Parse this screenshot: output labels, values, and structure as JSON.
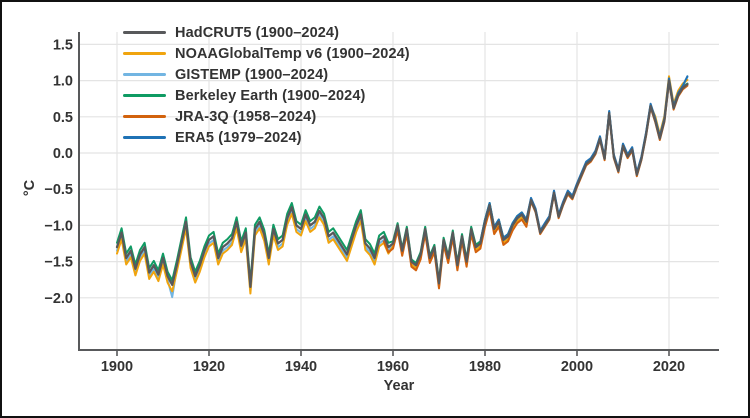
{
  "figure": {
    "background_color": "#ffffff",
    "border_color": "#111111"
  },
  "axes": {
    "xlabel": "Year",
    "ylabel": "°C",
    "axis_color": "#58595b",
    "grid_color": "#e4e4e4",
    "tick_label_color": "#333333",
    "x_ticks": [
      1900,
      1920,
      1940,
      1960,
      1980,
      2000,
      2020
    ],
    "y_ticks": [
      1.5,
      1.0,
      0.5,
      0.0,
      -0.5,
      -1.0,
      -1.5,
      -2.0
    ],
    "y_tick_labels": [
      "1.5",
      "1.0",
      "0.5",
      "0.0",
      "−0.5",
      "−1.0",
      "−1.5",
      "−2.0"
    ],
    "xlim": [
      1892,
      2031
    ],
    "ylim": [
      -2.72,
      1.67
    ]
  },
  "chart_data": {
    "type": "line",
    "title": "",
    "xlabel": "Year",
    "ylabel": "°C",
    "grid": true,
    "legend_position": "top-left-inside",
    "x_start_year": 1900,
    "x_end_year": 2024,
    "description": "Annual surface air temperature anomalies (°C) from six datasets, nearly overlapping lines rising from about -1.4 °C in 1900 to about +1.0 °C in 2024.",
    "base_series_name": "HadCRUT5",
    "base_values_1900_2024": [
      -1.3,
      -1.1,
      -1.45,
      -1.35,
      -1.6,
      -1.4,
      -1.3,
      -1.65,
      -1.55,
      -1.68,
      -1.45,
      -1.7,
      -1.82,
      -1.55,
      -1.25,
      -0.95,
      -1.5,
      -1.7,
      -1.55,
      -1.35,
      -1.2,
      -1.15,
      -1.45,
      -1.3,
      -1.25,
      -1.18,
      -0.95,
      -1.28,
      -1.1,
      -1.85,
      -1.05,
      -0.95,
      -1.12,
      -1.45,
      -1.05,
      -1.25,
      -1.2,
      -0.9,
      -0.75,
      -1.0,
      -1.05,
      -0.85,
      -1.0,
      -0.95,
      -0.8,
      -0.9,
      -1.15,
      -1.1,
      -1.2,
      -1.3,
      -1.4,
      -1.2,
      -1.0,
      -0.85,
      -1.25,
      -1.32,
      -1.45,
      -1.2,
      -1.15,
      -1.3,
      -1.25,
      -1.0,
      -1.35,
      -1.05,
      -1.5,
      -1.55,
      -1.4,
      -1.05,
      -1.45,
      -1.3,
      -1.8,
      -1.2,
      -1.45,
      -1.1,
      -1.55,
      -1.15,
      -1.5,
      -1.05,
      -1.3,
      -1.25,
      -0.95,
      -0.72,
      -1.05,
      -0.95,
      -1.2,
      -1.15,
      -1.0,
      -0.9,
      -0.85,
      -0.95,
      -0.65,
      -0.8,
      -1.1,
      -1.0,
      -0.9,
      -0.55,
      -0.88,
      -0.7,
      -0.55,
      -0.62,
      -0.45,
      -0.3,
      -0.15,
      -0.1,
      0.0,
      0.2,
      -0.08,
      0.55,
      -0.05,
      -0.25,
      0.1,
      -0.05,
      0.05,
      -0.3,
      -0.08,
      0.25,
      0.65,
      0.45,
      0.2,
      0.45,
      1.0,
      0.62,
      0.8,
      0.9,
      0.95
    ],
    "series": [
      {
        "name": "HadCRUT5 (1900–2024)",
        "short_name": "HadCRUT5",
        "color": "#58595b",
        "start_year": 1900,
        "end_year": 2024,
        "line_width": 2.3,
        "offsets_from_base": [
          [
            1900,
            2024,
            0.0
          ]
        ]
      },
      {
        "name": "NOAAGlobalTemp v6 (1900–2024)",
        "short_name": "NOAAGlobalTemp v6",
        "color": "#f0a40e",
        "start_year": 1900,
        "end_year": 2024,
        "line_width": 2.0,
        "offsets_from_base": [
          [
            1900,
            1959,
            -0.09
          ],
          [
            1960,
            1989,
            -0.04
          ],
          [
            1990,
            2016,
            0.0
          ],
          [
            2017,
            2024,
            0.06
          ]
        ]
      },
      {
        "name": "GISTEMP (1900–2024)",
        "short_name": "GISTEMP",
        "color": "#72b5e2",
        "start_year": 1900,
        "end_year": 2024,
        "line_width": 2.0,
        "offsets_from_base": [
          [
            1900,
            1959,
            -0.05
          ],
          [
            1960,
            1989,
            -0.02
          ],
          [
            1990,
            2023,
            0.02
          ],
          [
            2024,
            2024,
            0.1
          ]
        ],
        "extra_offsets": {
          "1912": -0.12
        }
      },
      {
        "name": "Berkeley Earth (1900–2024)",
        "short_name": "Berkeley Earth",
        "color": "#0f9b63",
        "start_year": 1900,
        "end_year": 2024,
        "line_width": 2.0,
        "offsets_from_base": [
          [
            1900,
            1959,
            0.06
          ],
          [
            1960,
            1989,
            0.03
          ],
          [
            1990,
            2024,
            0.01
          ]
        ]
      },
      {
        "name": "JRA-3Q (1958–2024)",
        "short_name": "JRA-3Q",
        "color": "#d2620d",
        "start_year": 1958,
        "end_year": 2024,
        "line_width": 2.0,
        "offsets_from_base": [
          [
            1958,
            1989,
            -0.07
          ],
          [
            1990,
            2024,
            -0.02
          ]
        ]
      },
      {
        "name": "ERA5 (1979–2024)",
        "short_name": "ERA5",
        "color": "#1f72b5",
        "start_year": 1979,
        "end_year": 2024,
        "line_width": 2.0,
        "offsets_from_base": [
          [
            1979,
            2023,
            0.03
          ],
          [
            2024,
            2024,
            0.11
          ]
        ]
      }
    ],
    "draw_order": [
      2,
      3,
      1,
      4,
      5,
      0
    ]
  }
}
